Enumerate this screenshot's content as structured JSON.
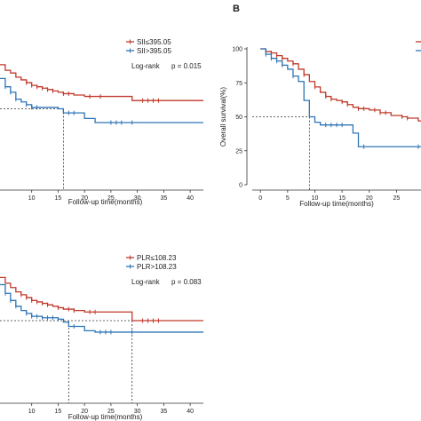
{
  "panels": [
    {
      "id": "top-left",
      "letter": "",
      "xlabel": "Follow-up time(months)",
      "ylabel": "",
      "annotation": {
        "label": "Log-rank",
        "p": "p = 0.015"
      },
      "xticks": [
        10,
        15,
        20,
        25,
        30,
        35,
        40
      ],
      "yticks": [],
      "chart_data": {
        "type": "line",
        "xlim": [
          4,
          42.5
        ],
        "ylim": [
          0,
          100
        ],
        "median_line": {
          "y": 50,
          "x": 16
        },
        "series": [
          {
            "name": "SII≤395.05",
            "color": "#c0392b",
            "steps": [
              [
                4,
                82
              ],
              [
                5,
                78
              ],
              [
                6,
                76
              ],
              [
                7,
                73
              ],
              [
                8,
                71
              ],
              [
                9,
                69
              ],
              [
                10,
                67
              ],
              [
                11,
                66
              ],
              [
                12,
                65
              ],
              [
                13,
                64
              ],
              [
                14,
                63
              ],
              [
                15,
                62
              ],
              [
                16,
                61
              ],
              [
                18,
                60
              ],
              [
                20,
                59
              ],
              [
                29,
                56
              ],
              [
                42.5,
                56
              ]
            ],
            "censor_x": [
              9,
              10,
              11,
              12,
              13,
              14,
              16,
              17,
              21,
              23,
              31,
              32,
              33,
              34
            ]
          },
          {
            "name": "SII>395.05",
            "color": "#2e75b6",
            "steps": [
              [
                4,
                72
              ],
              [
                5,
                66
              ],
              [
                6,
                62
              ],
              [
                7,
                57
              ],
              [
                8,
                55
              ],
              [
                9,
                53
              ],
              [
                10,
                51
              ],
              [
                15,
                50
              ],
              [
                16,
                47
              ],
              [
                20,
                43
              ],
              [
                22,
                40
              ],
              [
                42.5,
                40
              ]
            ],
            "censor_x": [
              5,
              6,
              7,
              9,
              10,
              11,
              17,
              18,
              25,
              26,
              27,
              29
            ]
          }
        ]
      }
    },
    {
      "id": "top-right",
      "letter": "B",
      "xlabel": "Follow-up time(months)",
      "ylabel": "Overall survival(%)",
      "annotation": null,
      "xticks": [
        0,
        5,
        10,
        15,
        20,
        25
      ],
      "yticks": [
        0,
        25,
        50,
        75,
        100
      ],
      "chart_data": {
        "type": "line",
        "xlim": [
          -1.5,
          29.5
        ],
        "ylim": [
          0,
          100
        ],
        "median_line": {
          "y": 50,
          "x": 9
        },
        "series": [
          {
            "name": "",
            "color": "#c0392b",
            "steps": [
              [
                0,
                100
              ],
              [
                1,
                98
              ],
              [
                2,
                97
              ],
              [
                3,
                95
              ],
              [
                4,
                93
              ],
              [
                5,
                91
              ],
              [
                6,
                89
              ],
              [
                7,
                85
              ],
              [
                8,
                81
              ],
              [
                9,
                76
              ],
              [
                10,
                72
              ],
              [
                11,
                68
              ],
              [
                12,
                65
              ],
              [
                13,
                63
              ],
              [
                14,
                62
              ],
              [
                15,
                61
              ],
              [
                16,
                59
              ],
              [
                17,
                57
              ],
              [
                18,
                56
              ],
              [
                20,
                55
              ],
              [
                22,
                53
              ],
              [
                24,
                51
              ],
              [
                26,
                50
              ],
              [
                27,
                49
              ],
              [
                29,
                47
              ],
              [
                29.5,
                47
              ]
            ],
            "censor_x": [
              1,
              2,
              3,
              4,
              6,
              8,
              10,
              12,
              13,
              15,
              16,
              18,
              19,
              21,
              22,
              23,
              26,
              27
            ]
          },
          {
            "name": "",
            "color": "#2e75b6",
            "steps": [
              [
                0,
                100
              ],
              [
                1,
                96
              ],
              [
                2,
                93
              ],
              [
                3,
                91
              ],
              [
                4,
                88
              ],
              [
                5,
                85
              ],
              [
                6,
                80
              ],
              [
                7,
                76
              ],
              [
                8,
                62
              ],
              [
                9,
                50
              ],
              [
                10,
                46
              ],
              [
                11,
                44
              ],
              [
                17,
                38
              ],
              [
                18,
                28
              ],
              [
                29.5,
                28
              ]
            ],
            "censor_x": [
              1,
              2,
              3,
              4,
              6,
              12,
              13,
              14,
              15,
              19,
              29
            ]
          }
        ]
      }
    },
    {
      "id": "bottom-left",
      "letter": "",
      "xlabel": "Follow-up time(months)",
      "ylabel": "",
      "annotation": {
        "label": "Log-rank",
        "p": "p = 0.083"
      },
      "xticks": [
        10,
        15,
        20,
        25,
        30,
        35,
        40
      ],
      "yticks": [],
      "chart_data": {
        "type": "line",
        "xlim": [
          4,
          42.5
        ],
        "ylim": [
          0,
          100
        ],
        "median_line": {
          "y": 50,
          "x": 17,
          "x2": 29
        },
        "series": [
          {
            "name": "PLR≤108.23",
            "color": "#c0392b",
            "steps": [
              [
                4,
                80
              ],
              [
                5,
                76
              ],
              [
                6,
                73
              ],
              [
                7,
                70
              ],
              [
                8,
                68
              ],
              [
                9,
                66
              ],
              [
                10,
                64
              ],
              [
                11,
                63
              ],
              [
                12,
                62
              ],
              [
                13,
                61
              ],
              [
                14,
                60
              ],
              [
                15,
                59
              ],
              [
                16,
                58
              ],
              [
                18,
                57
              ],
              [
                20,
                56
              ],
              [
                29,
                50
              ],
              [
                42.5,
                50
              ]
            ],
            "censor_x": [
              8,
              9,
              10,
              11,
              12,
              13,
              15,
              17,
              18,
              21,
              22,
              31,
              32,
              33,
              34
            ]
          },
          {
            "name": "PLR>108.23",
            "color": "#2e75b6",
            "steps": [
              [
                4,
                75
              ],
              [
                5,
                69
              ],
              [
                6,
                64
              ],
              [
                7,
                60
              ],
              [
                8,
                57
              ],
              [
                9,
                55
              ],
              [
                10,
                53
              ],
              [
                12,
                52
              ],
              [
                15,
                51
              ],
              [
                16,
                49
              ],
              [
                17,
                46
              ],
              [
                20,
                43
              ],
              [
                22,
                42
              ],
              [
                42.5,
                42
              ]
            ],
            "censor_x": [
              5,
              6,
              7,
              9,
              10,
              11,
              12,
              13,
              14,
              15,
              18,
              23,
              24,
              25,
              29
            ]
          }
        ]
      }
    }
  ]
}
